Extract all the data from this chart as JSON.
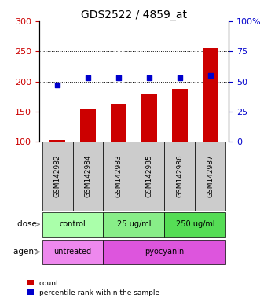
{
  "title": "GDS2522 / 4859_at",
  "samples": [
    "GSM142982",
    "GSM142984",
    "GSM142983",
    "GSM142985",
    "GSM142986",
    "GSM142987"
  ],
  "bar_values": [
    103,
    155,
    163,
    178,
    188,
    255
  ],
  "percentile_values": [
    47,
    53,
    53,
    53,
    53,
    55
  ],
  "bar_color": "#cc0000",
  "dot_color": "#0000cc",
  "ylim_left": [
    100,
    300
  ],
  "ylim_right": [
    0,
    100
  ],
  "yticks_left": [
    100,
    150,
    200,
    250,
    300
  ],
  "yticks_right": [
    0,
    25,
    50,
    75,
    100
  ],
  "ytick_labels_right": [
    "0",
    "25",
    "50",
    "75",
    "100%"
  ],
  "dose_groups": [
    {
      "label": "control",
      "start": 0,
      "end": 2,
      "color": "#aaffaa"
    },
    {
      "label": "25 ug/ml",
      "start": 2,
      "end": 4,
      "color": "#88ee88"
    },
    {
      "label": "250 ug/ml",
      "start": 4,
      "end": 6,
      "color": "#55dd55"
    }
  ],
  "agent_groups": [
    {
      "label": "untreated",
      "start": 0,
      "end": 2,
      "color": "#ee88ee"
    },
    {
      "label": "pyocyanin",
      "start": 2,
      "end": 6,
      "color": "#dd55dd"
    }
  ],
  "dose_label": "dose",
  "agent_label": "agent",
  "legend_count": "count",
  "legend_percentile": "percentile rank within the sample",
  "background_color": "#ffffff",
  "plot_bg_color": "#ffffff",
  "grid_color": "#000000",
  "sample_box_color": "#cccccc"
}
